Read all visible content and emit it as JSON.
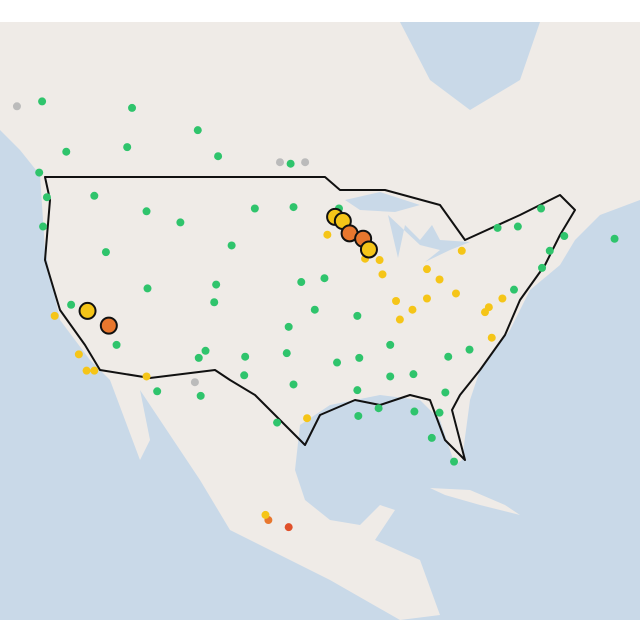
{
  "markers": [
    {
      "lon": -122.3,
      "lat": 47.6,
      "color": "#2fc46c"
    },
    {
      "lon": -122.7,
      "lat": 45.5,
      "color": "#2fc46c"
    },
    {
      "lon": -117.4,
      "lat": 47.7,
      "color": "#2fc46c"
    },
    {
      "lon": -116.2,
      "lat": 43.6,
      "color": "#2fc46c"
    },
    {
      "lon": -111.9,
      "lat": 40.8,
      "color": "#2fc46c"
    },
    {
      "lon": -105.0,
      "lat": 39.7,
      "color": "#2fc46c"
    },
    {
      "lon": -112.0,
      "lat": 33.5,
      "color": "#f5c518"
    },
    {
      "lon": -106.6,
      "lat": 35.1,
      "color": "#2fc46c"
    },
    {
      "lon": -106.4,
      "lat": 31.8,
      "color": "#2fc46c"
    },
    {
      "lon": -96.8,
      "lat": 32.8,
      "color": "#2fc46c"
    },
    {
      "lon": -95.4,
      "lat": 29.8,
      "color": "#f5c518"
    },
    {
      "lon": -98.5,
      "lat": 29.4,
      "color": "#2fc46c"
    },
    {
      "lon": -97.5,
      "lat": 35.5,
      "color": "#2fc46c"
    },
    {
      "lon": -94.6,
      "lat": 39.1,
      "color": "#2fc46c"
    },
    {
      "lon": -96.0,
      "lat": 41.3,
      "color": "#2fc46c"
    },
    {
      "lon": -93.3,
      "lat": 44.9,
      "color": "#f5c518"
    },
    {
      "lon": -93.6,
      "lat": 41.6,
      "color": "#2fc46c"
    },
    {
      "lon": -90.2,
      "lat": 38.6,
      "color": "#2fc46c"
    },
    {
      "lon": -90.0,
      "lat": 35.1,
      "color": "#2fc46c"
    },
    {
      "lon": -90.1,
      "lat": 30.0,
      "color": "#2fc46c"
    },
    {
      "lon": -84.4,
      "lat": 33.7,
      "color": "#2fc46c"
    },
    {
      "lon": -80.2,
      "lat": 25.8,
      "color": "#2fc46c"
    },
    {
      "lon": -82.5,
      "lat": 28.0,
      "color": "#2fc46c"
    },
    {
      "lon": -81.7,
      "lat": 30.3,
      "color": "#2fc46c"
    },
    {
      "lon": -80.8,
      "lat": 35.2,
      "color": "#2fc46c"
    },
    {
      "lon": -78.6,
      "lat": 35.8,
      "color": "#2fc46c"
    },
    {
      "lon": -86.8,
      "lat": 36.2,
      "color": "#2fc46c"
    },
    {
      "lon": -85.8,
      "lat": 38.3,
      "color": "#f5c518"
    },
    {
      "lon": -86.2,
      "lat": 39.8,
      "color": "#f5c518"
    },
    {
      "lon": -83.0,
      "lat": 40.0,
      "color": "#f5c518"
    },
    {
      "lon": -71.1,
      "lat": 42.4,
      "color": "#2fc46c"
    },
    {
      "lon": -70.3,
      "lat": 43.7,
      "color": "#2fc46c"
    },
    {
      "lon": -68.8,
      "lat": 44.8,
      "color": "#2fc46c"
    },
    {
      "lon": -108.5,
      "lat": 45.8,
      "color": "#2fc46c"
    },
    {
      "lon": -112.0,
      "lat": 46.6,
      "color": "#2fc46c"
    },
    {
      "lon": -100.8,
      "lat": 46.8,
      "color": "#2fc46c"
    },
    {
      "lon": -96.8,
      "lat": 46.9,
      "color": "#2fc46c"
    },
    {
      "lon": -103.2,
      "lat": 44.1,
      "color": "#2fc46c"
    },
    {
      "lon": -104.8,
      "lat": 41.1,
      "color": "#2fc46c"
    },
    {
      "lon": -119.8,
      "lat": 39.5,
      "color": "#2fc46c"
    },
    {
      "lon": -115.1,
      "lat": 36.2,
      "color": "#2fc46c"
    },
    {
      "lon": -110.9,
      "lat": 32.2,
      "color": "#2fc46c"
    },
    {
      "lon": -105.9,
      "lat": 35.7,
      "color": "#2fc46c"
    },
    {
      "lon": -101.8,
      "lat": 35.2,
      "color": "#2fc46c"
    },
    {
      "lon": -101.9,
      "lat": 33.6,
      "color": "#2fc46c"
    },
    {
      "lon": -97.3,
      "lat": 37.7,
      "color": "#2fc46c"
    },
    {
      "lon": -92.3,
      "lat": 34.7,
      "color": "#2fc46c"
    },
    {
      "lon": -90.2,
      "lat": 32.3,
      "color": "#2fc46c"
    },
    {
      "lon": -86.8,
      "lat": 33.5,
      "color": "#2fc46c"
    },
    {
      "lon": -88.0,
      "lat": 30.7,
      "color": "#2fc46c"
    },
    {
      "lon": -84.3,
      "lat": 30.4,
      "color": "#2fc46c"
    },
    {
      "lon": -81.1,
      "lat": 32.1,
      "color": "#2fc46c"
    },
    {
      "lon": -76.3,
      "lat": 36.8,
      "color": "#f5c518"
    },
    {
      "lon": -114.0,
      "lat": 51.0,
      "color": "#2fc46c"
    },
    {
      "lon": -113.5,
      "lat": 53.5,
      "color": "#2fc46c"
    },
    {
      "lon": -123.1,
      "lat": 49.3,
      "color": "#2fc46c"
    },
    {
      "lon": -104.6,
      "lat": 50.4,
      "color": "#2fc46c"
    },
    {
      "lon": -97.1,
      "lat": 49.9,
      "color": "#2fc46c"
    },
    {
      "lon": -120.3,
      "lat": 50.7,
      "color": "#2fc46c"
    },
    {
      "lon": -122.8,
      "lat": 53.9,
      "color": "#2fc46c"
    },
    {
      "lon": -106.7,
      "lat": 52.1,
      "color": "#2fc46c"
    },
    {
      "lon": -79.4,
      "lat": 43.7,
      "color": "#f5c518"
    },
    {
      "lon": -73.6,
      "lat": 45.5,
      "color": "#2fc46c"
    },
    {
      "lon": -71.2,
      "lat": 46.8,
      "color": "#2fc46c"
    },
    {
      "lon": -63.6,
      "lat": 44.6,
      "color": "#2fc46c"
    },
    {
      "lon": -75.7,
      "lat": 45.4,
      "color": "#2fc46c"
    },
    {
      "lon": -92.1,
      "lat": 46.8,
      "color": "#2fc46c"
    },
    {
      "lon": -87.9,
      "lat": 43.0,
      "color": "#f5c518"
    },
    {
      "lon": -87.6,
      "lat": 41.9,
      "color": "#f5c518"
    },
    {
      "lon": -83.0,
      "lat": 42.3,
      "color": "#f5c518"
    },
    {
      "lon": -81.7,
      "lat": 41.5,
      "color": "#f5c518"
    },
    {
      "lon": -80.0,
      "lat": 40.4,
      "color": "#f5c518"
    },
    {
      "lon": -75.2,
      "lat": 40.0,
      "color": "#f5c518"
    },
    {
      "lon": -74.0,
      "lat": 40.7,
      "color": "#2fc46c"
    },
    {
      "lon": -76.6,
      "lat": 39.3,
      "color": "#f5c518"
    },
    {
      "lon": -77.0,
      "lat": 38.9,
      "color": "#f5c518"
    },
    {
      "lon": -118.2,
      "lat": 34.0,
      "color": "#f5c518"
    },
    {
      "lon": -117.4,
      "lat": 34.0,
      "color": "#f5c518"
    },
    {
      "lon": -119.0,
      "lat": 35.4,
      "color": "#f5c518"
    },
    {
      "lon": -121.5,
      "lat": 38.6,
      "color": "#f5c518"
    },
    {
      "lon": -84.5,
      "lat": 39.1,
      "color": "#f5c518"
    },
    {
      "lon": -89.4,
      "lat": 43.1,
      "color": "#f5c518"
    },
    {
      "lon": -125.4,
      "lat": 53.6,
      "color": "#bbbbbb"
    },
    {
      "lon": -98.2,
      "lat": 50.0,
      "color": "#bbbbbb"
    },
    {
      "lon": -95.6,
      "lat": 50.0,
      "color": "#bbbbbb"
    },
    {
      "lon": -107.0,
      "lat": 33.0,
      "color": "#bbbbbb"
    },
    {
      "lon": -99.4,
      "lat": 20.2,
      "color": "#e8772e"
    },
    {
      "lon": -99.7,
      "lat": 20.7,
      "color": "#f5c518"
    },
    {
      "lon": -97.3,
      "lat": 19.5,
      "color": "#e0502a"
    }
  ],
  "highlighted_markers": [
    {
      "lon": -92.5,
      "lat": 46.2,
      "color": "#f5c518"
    },
    {
      "lon": -91.7,
      "lat": 45.9,
      "color": "#f5c518"
    },
    {
      "lon": -91.0,
      "lat": 45.0,
      "color": "#e8772e"
    },
    {
      "lon": -89.6,
      "lat": 44.6,
      "color": "#e8772e"
    },
    {
      "lon": -89.0,
      "lat": 43.8,
      "color": "#f5c518"
    },
    {
      "lon": -118.1,
      "lat": 39.0,
      "color": "#f5c518"
    },
    {
      "lon": -115.9,
      "lat": 37.8,
      "color": "#e8772e"
    }
  ]
}
